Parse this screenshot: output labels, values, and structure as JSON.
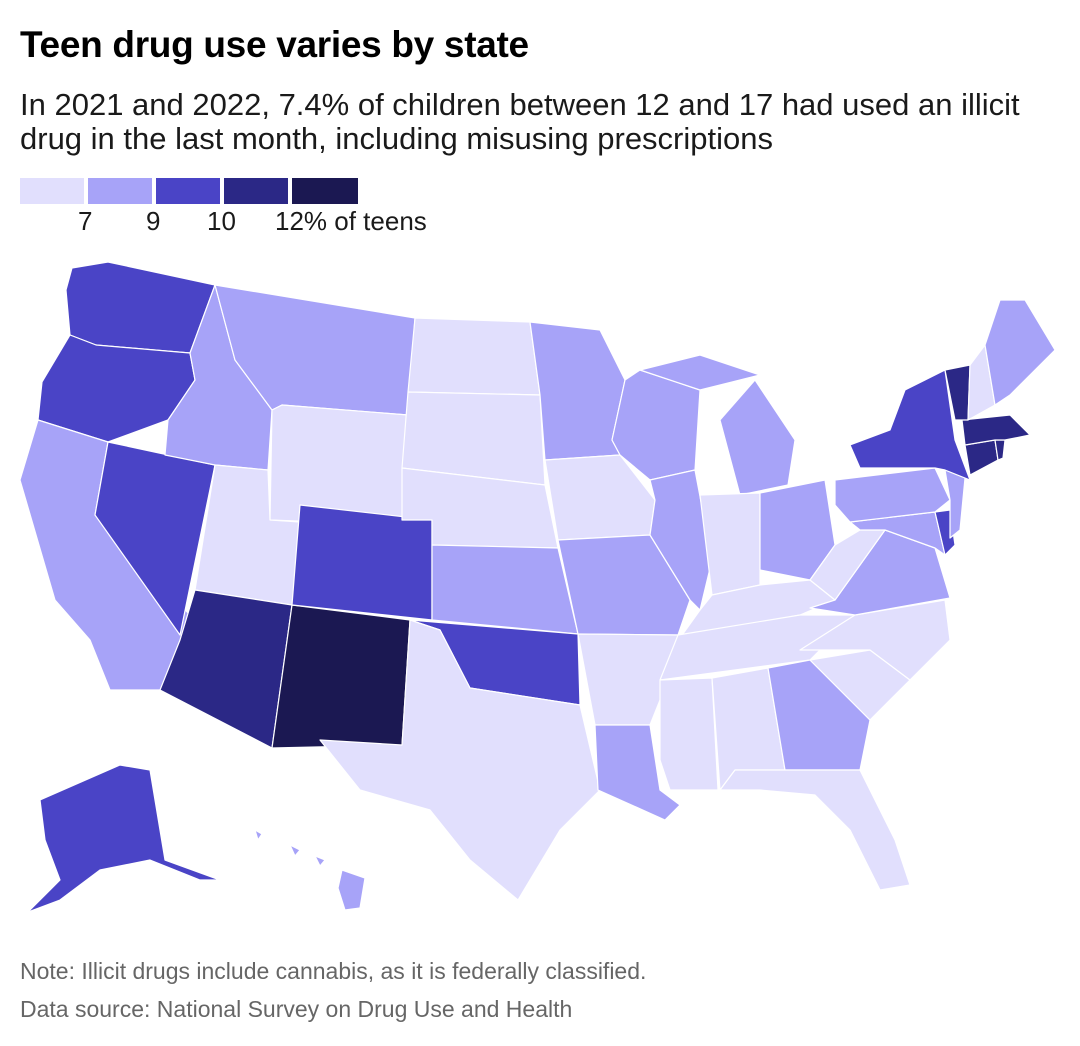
{
  "title": "Teen drug use varies by state",
  "subtitle": "In 2021 and 2022, 7.4% of children between 12 and 17 had used an illicit drug in the last month, including misusing prescriptions",
  "legend": {
    "colors": [
      "#e1dffd",
      "#a7a3f8",
      "#4a44c6",
      "#2b2886",
      "#1b1852"
    ],
    "ticks": [
      "7",
      "9",
      "10",
      "12% of teens"
    ]
  },
  "note": "Note: Illicit drugs include cannabis, as it is federally classified.",
  "source": "Data source: National Survey on Drug Use and Health",
  "chart_data": {
    "type": "choropleth",
    "bins": [
      {
        "range": "below 7",
        "color": "#e1dffd"
      },
      {
        "range": "7-9",
        "color": "#a7a3f8"
      },
      {
        "range": "9-10",
        "color": "#4a44c6"
      },
      {
        "range": "10-12",
        "color": "#2b2886"
      },
      {
        "range": "12 and above",
        "color": "#1b1852"
      }
    ],
    "states": {
      "WA": 2,
      "OR": 2,
      "CA": 1,
      "NV": 2,
      "ID": 1,
      "MT": 1,
      "WY": 0,
      "UT": 0,
      "AZ": 3,
      "NM": 4,
      "CO": 2,
      "ND": 0,
      "SD": 0,
      "NE": 0,
      "KS": 1,
      "OK": 2,
      "TX": 0,
      "MN": 1,
      "IA": 0,
      "MO": 1,
      "AR": 0,
      "LA": 1,
      "WI": 1,
      "IL": 1,
      "MI": 1,
      "IN": 0,
      "OH": 1,
      "KY": 0,
      "TN": 0,
      "MS": 0,
      "AL": 0,
      "GA": 1,
      "FL": 0,
      "SC": 0,
      "NC": 0,
      "VA": 1,
      "WV": 0,
      "MD": 1,
      "DE": 2,
      "PA": 1,
      "NJ": 1,
      "NY": 2,
      "CT": 3,
      "RI": 3,
      "MA": 3,
      "VT": 3,
      "NH": 0,
      "ME": 1,
      "AK": 2,
      "HI": 1
    }
  }
}
